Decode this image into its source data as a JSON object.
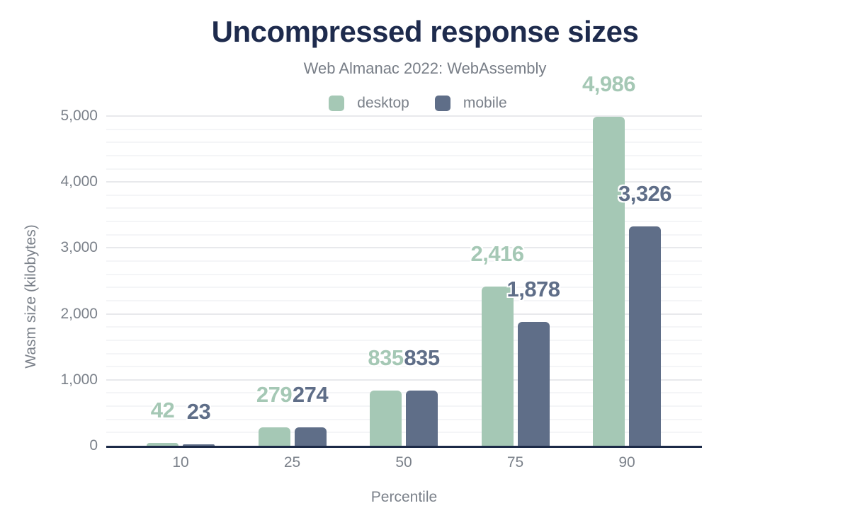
{
  "title": "Uncompressed response sizes",
  "subtitle": "Web Almanac 2022: WebAssembly",
  "legend": {
    "items": [
      {
        "label": "desktop",
        "color": "#a5c8b5"
      },
      {
        "label": "mobile",
        "color": "#5f6e88"
      }
    ]
  },
  "chart_data": {
    "type": "bar",
    "title": "Uncompressed response sizes",
    "subtitle": "Web Almanac 2022: WebAssembly",
    "categories": [
      "10",
      "25",
      "50",
      "75",
      "90"
    ],
    "series": [
      {
        "name": "desktop",
        "color": "#a5c8b5",
        "values": [
          42,
          279,
          835,
          2416,
          4986
        ],
        "value_labels": [
          "42",
          "279",
          "835",
          "2,416",
          "4,986"
        ]
      },
      {
        "name": "mobile",
        "color": "#5f6e88",
        "values": [
          23,
          274,
          835,
          1878,
          3326
        ],
        "value_labels": [
          "23",
          "274",
          "835",
          "1,878",
          "3,326"
        ]
      }
    ],
    "xlabel": "Percentile",
    "ylabel": "Wasm size (kilobytes)",
    "ylim": [
      0,
      5000
    ],
    "yticks": [
      {
        "value": 0,
        "label": "0"
      },
      {
        "value": 1000,
        "label": "1,000"
      },
      {
        "value": 2000,
        "label": "2,000"
      },
      {
        "value": 3000,
        "label": "3,000"
      },
      {
        "value": 4000,
        "label": "4,000"
      },
      {
        "value": 5000,
        "label": "5,000"
      }
    ],
    "y_minor_step": 200,
    "grid": "horizontal",
    "legend_position": "top"
  },
  "colors": {
    "title": "#1e2b4d",
    "subtitle": "#787e87",
    "axis_text": "#7b818a",
    "axis_line": "#1c2a47",
    "grid_major": "#e8e9ec",
    "grid_minor": "#f4f5f7",
    "desktop": "#a5c8b5",
    "mobile": "#5f6e88",
    "background": "#ffffff"
  }
}
